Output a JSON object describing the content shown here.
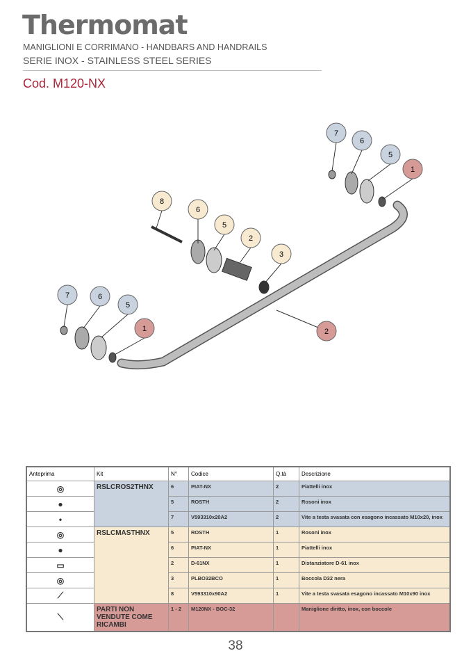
{
  "header": {
    "logo": "Thermomat",
    "line1": "MANIGLIONI E CORRIMANO - HANDBARS AND HANDRAILS",
    "line2": "SERIE INOX - STAINLESS STEEL SERIES",
    "code": "Cod. M120-NX"
  },
  "drawing": {
    "callouts": [
      "7",
      "6",
      "5",
      "1",
      "8",
      "6",
      "5",
      "2",
      "3",
      "7",
      "6",
      "5",
      "1",
      "2"
    ]
  },
  "table": {
    "headers": [
      "Anteprima",
      "Kit",
      "N°",
      "Codice",
      "Q.tà",
      "Descrizione"
    ],
    "groups": [
      {
        "kit": "RSLCROS2THNX",
        "rows": [
          [
            "6",
            "PIAT-NX",
            "2",
            "Piattelli inox"
          ],
          [
            "5",
            "ROSTH",
            "2",
            "Rosoni inox"
          ],
          [
            "7",
            "V593310x20A2",
            "2",
            "Vite a testa svasata con esagono incassato M10x20, inox"
          ]
        ]
      },
      {
        "kit": "RSLCMASTHNX",
        "rows": [
          [
            "5",
            "ROSTH",
            "1",
            "Rosoni inox"
          ],
          [
            "6",
            "PIAT-NX",
            "1",
            "Piattelli inox"
          ],
          [
            "2",
            "D-61NX",
            "1",
            "Distanziatore D-61 inox"
          ],
          [
            "3",
            "PLBO32BCO",
            "1",
            "Boccola D32 nera"
          ],
          [
            "8",
            "V593310x90A2",
            "1",
            "Vite a testa svasata esagono incassato M10x90 inox"
          ]
        ]
      },
      {
        "kit": "PARTI NON VENDUTE COME RICAMBI",
        "rows": [
          [
            "1 - 2",
            "M120NX - BOC-32",
            "",
            "Maniglione diritto, inox, con boccole"
          ]
        ]
      }
    ],
    "colors": {
      "blue": "#c8d3df",
      "yellow": "#f7ead0",
      "red": "#d79b97"
    }
  },
  "page_number": "38"
}
